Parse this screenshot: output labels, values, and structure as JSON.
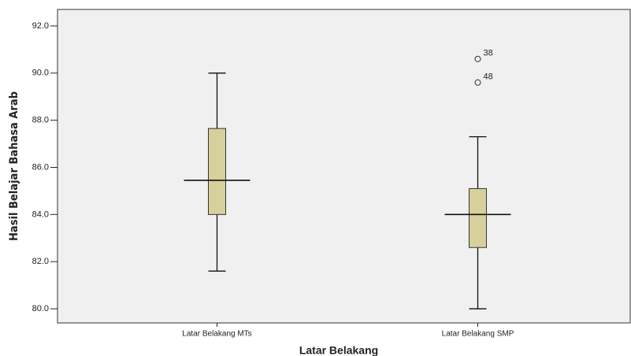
{
  "chart_data": {
    "type": "box",
    "x_label": "Latar Belakang",
    "y_label": "Hasil Belajar Bahasa Arab",
    "categories": [
      "Latar Belakang MTs",
      "Latar Belakang SMP"
    ],
    "color": "#d6d09c",
    "boxes": [
      {
        "whisker_low": 81.6,
        "q1": 84.0,
        "median": 85.45,
        "q3": 87.65,
        "whisker_high": 90.0,
        "outliers": []
      },
      {
        "whisker_low": 80.0,
        "q1": 82.6,
        "median": 84.0,
        "q3": 85.1,
        "whisker_high": 87.3,
        "outliers": [
          {
            "value": 90.6,
            "label": "38"
          },
          {
            "value": 89.6,
            "label": "48"
          }
        ]
      }
    ],
    "ylim": [
      79.4,
      92.7
    ],
    "yticks": [
      {
        "value": 80,
        "label": "80.0"
      },
      {
        "value": 82,
        "label": "82.0"
      },
      {
        "value": 84,
        "label": "84.0"
      },
      {
        "value": 86,
        "label": "86.0"
      },
      {
        "value": 88,
        "label": "88.0"
      },
      {
        "value": 90,
        "label": "90.0"
      },
      {
        "value": 92,
        "label": "92.0"
      }
    ]
  }
}
